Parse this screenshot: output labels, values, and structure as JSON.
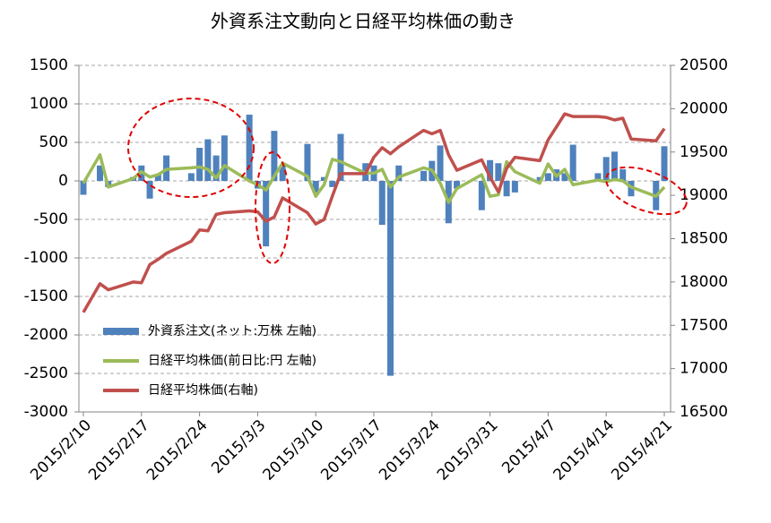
{
  "chart_data": {
    "type": "bar_line_combo",
    "title": "外資系注文動向と日経平均株価の動き",
    "x": [
      "2015-02-10",
      "2015-02-12",
      "2015-02-13",
      "2015-02-16",
      "2015-02-17",
      "2015-02-18",
      "2015-02-19",
      "2015-02-20",
      "2015-02-23",
      "2015-02-24",
      "2015-02-25",
      "2015-02-26",
      "2015-02-27",
      "2015-03-02",
      "2015-03-03",
      "2015-03-04",
      "2015-03-05",
      "2015-03-06",
      "2015-03-09",
      "2015-03-10",
      "2015-03-11",
      "2015-03-12",
      "2015-03-13",
      "2015-03-16",
      "2015-03-17",
      "2015-03-18",
      "2015-03-19",
      "2015-03-20",
      "2015-03-23",
      "2015-03-24",
      "2015-03-25",
      "2015-03-26",
      "2015-03-27",
      "2015-03-30",
      "2015-03-31",
      "2015-04-01",
      "2015-04-02",
      "2015-04-03",
      "2015-04-06",
      "2015-04-07",
      "2015-04-08",
      "2015-04-09",
      "2015-04-10",
      "2015-04-13",
      "2015-04-14",
      "2015-04-15",
      "2015-04-16",
      "2015-04-17",
      "2015-04-20",
      "2015-04-21"
    ],
    "xlim": [
      "2015-02-10",
      "2015-04-21"
    ],
    "xticks": [
      {
        "value": "2015-02-10",
        "label": "2015/2/10"
      },
      {
        "value": "2015-02-17",
        "label": "2015/2/17"
      },
      {
        "value": "2015-02-24",
        "label": "2015/2/24"
      },
      {
        "value": "2015-03-03",
        "label": "2015/3/3"
      },
      {
        "value": "2015-03-10",
        "label": "2015/3/10"
      },
      {
        "value": "2015-03-17",
        "label": "2015/3/17"
      },
      {
        "value": "2015-03-24",
        "label": "2015/3/24"
      },
      {
        "value": "2015-03-31",
        "label": "2015/3/31"
      },
      {
        "value": "2015-04-07",
        "label": "2015/4/7"
      },
      {
        "value": "2015-04-14",
        "label": "2015/4/14"
      },
      {
        "value": "2015-04-21",
        "label": "2015/4/21"
      }
    ],
    "ylim": [
      -3000,
      1500
    ],
    "yticks": [
      -3000,
      -2500,
      -2000,
      -1500,
      -1000,
      -500,
      0,
      500,
      1000,
      1500
    ],
    "y2lim": [
      16500,
      20500
    ],
    "y2ticks": [
      16500,
      17000,
      17500,
      18000,
      18500,
      19000,
      19500,
      20000,
      20500
    ],
    "grid": true,
    "legend": "lower left",
    "series": [
      {
        "name": "外資系注文(ネット:万株  左軸)",
        "type": "bar",
        "color": "#4f81bd",
        "values": [
          -180,
          200,
          -80,
          50,
          200,
          -230,
          80,
          330,
          100,
          430,
          540,
          330,
          590,
          860,
          -100,
          -850,
          650,
          200,
          480,
          -150,
          50,
          -80,
          610,
          230,
          200,
          -570,
          -2530,
          200,
          130,
          260,
          460,
          -550,
          -100,
          -380,
          270,
          230,
          -200,
          -150,
          50,
          100,
          150,
          100,
          470,
          100,
          310,
          380,
          150,
          -200,
          -380,
          450
        ]
      },
      {
        "name": "日経平均株価(前日比:円  左軸)",
        "type": "line",
        "color": "#9bbb59",
        "values": [
          -30,
          340,
          -80,
          30,
          120,
          50,
          80,
          150,
          170,
          180,
          150,
          40,
          200,
          0,
          -50,
          -120,
          60,
          230,
          60,
          -200,
          -50,
          280,
          250,
          100,
          100,
          150,
          -80,
          50,
          170,
          140,
          -30,
          -280,
          -100,
          80,
          -200,
          -180,
          250,
          120,
          -30,
          220,
          60,
          150,
          -50,
          10,
          -10,
          20,
          0,
          -80,
          -200,
          -80
        ]
      },
      {
        "name": "日経平均株価(右軸)",
        "type": "line",
        "color": "#c0504d",
        "axis": "y2",
        "values": [
          17650,
          17980,
          17910,
          18000,
          17990,
          18200,
          18260,
          18330,
          18470,
          18600,
          18590,
          18780,
          18800,
          18820,
          18810,
          18700,
          18750,
          18970,
          18800,
          18670,
          18720,
          18990,
          19250,
          19250,
          19440,
          19550,
          19480,
          19560,
          19750,
          19710,
          19750,
          19470,
          19290,
          19410,
          19210,
          19040,
          19310,
          19440,
          19400,
          19640,
          19790,
          19940,
          19910,
          19910,
          19900,
          19870,
          19890,
          19650,
          19630,
          19770
        ]
      }
    ]
  }
}
